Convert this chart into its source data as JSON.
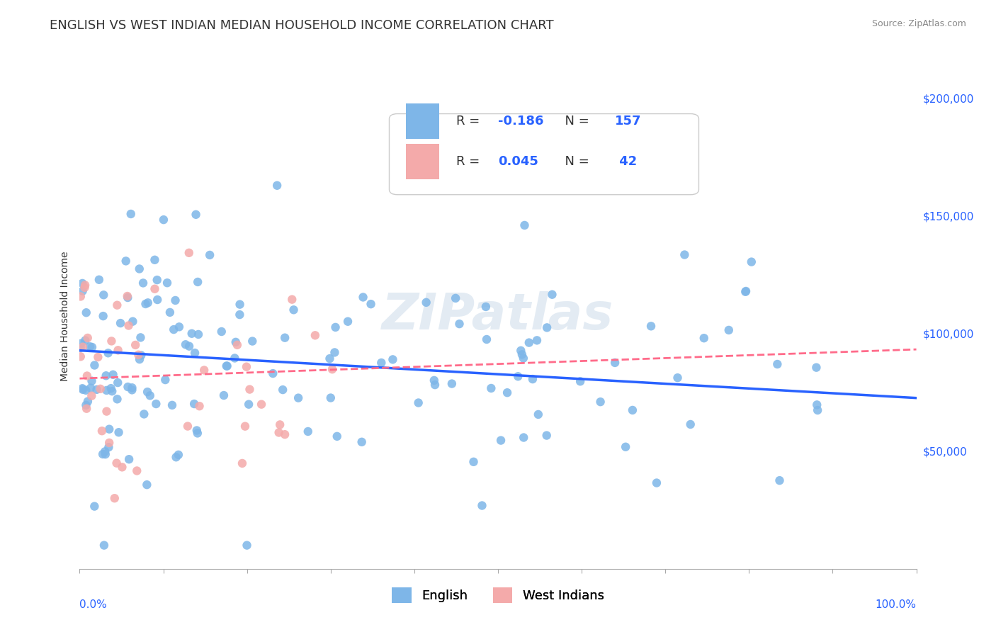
{
  "title": "ENGLISH VS WEST INDIAN MEDIAN HOUSEHOLD INCOME CORRELATION CHART",
  "source": "Source: ZipAtlas.com",
  "ylabel": "Median Household Income",
  "y_right_ticks": [
    0,
    50000,
    100000,
    150000,
    200000
  ],
  "y_right_labels": [
    "",
    "$50,000",
    "$100,000",
    "$150,000",
    "$200,000"
  ],
  "xlim": [
    0,
    100
  ],
  "ylim": [
    0,
    215000
  ],
  "watermark": "ZIPatlas",
  "blue_color": "#7EB6E8",
  "pink_color": "#F4AAAA",
  "blue_line_color": "#2962FF",
  "pink_line_color": "#FF6B8A",
  "bg_color": "#FFFFFF",
  "grid_color": "#CCCCCC",
  "english_r": -0.186,
  "english_n": 157,
  "westindian_r": 0.045,
  "westindian_n": 42,
  "title_fontsize": 13,
  "axis_label_fontsize": 10,
  "tick_fontsize": 10,
  "legend_fontsize": 13
}
